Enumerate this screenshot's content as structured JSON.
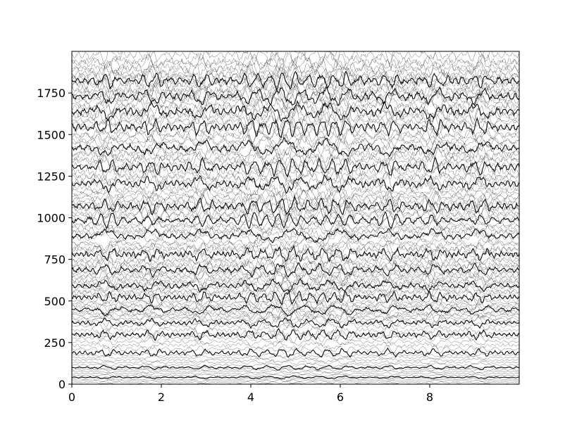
{
  "chart_data": {
    "type": "line",
    "title": "",
    "xlabel": "",
    "ylabel": "",
    "xlim": [
      0,
      10
    ],
    "ylim": [
      0,
      2000
    ],
    "x_ticks": [
      {
        "value": 0,
        "label": "0"
      },
      {
        "value": 2,
        "label": "2"
      },
      {
        "value": 4,
        "label": "4"
      },
      {
        "value": 6,
        "label": "6"
      },
      {
        "value": 8,
        "label": "8"
      }
    ],
    "y_ticks": [
      {
        "value": 0,
        "label": "0"
      },
      {
        "value": 250,
        "label": "250"
      },
      {
        "value": 500,
        "label": "500"
      },
      {
        "value": 750,
        "label": "750"
      },
      {
        "value": 1000,
        "label": "1000"
      },
      {
        "value": 1250,
        "label": "1250"
      },
      {
        "value": 1500,
        "label": "1500"
      },
      {
        "value": 1750,
        "label": "1750"
      }
    ],
    "grid": false,
    "legend": "none",
    "line_color": "#000000",
    "transition_times": [
      0.8,
      1.8,
      2.9,
      4.0,
      4.6,
      5.0,
      5.6,
      6.1,
      7.1,
      8.1,
      9.1
    ],
    "series": [
      {
        "offset": 20,
        "amplitude": 4
      },
      {
        "offset": 75,
        "amplitude": 6
      },
      {
        "offset": 145,
        "amplitude": 10
      },
      {
        "offset": 255,
        "amplitude": 18
      },
      {
        "offset": 375,
        "amplitude": 22
      },
      {
        "offset": 440,
        "amplitude": 20
      },
      {
        "offset": 530,
        "amplitude": 24
      },
      {
        "offset": 610,
        "amplitude": 26
      },
      {
        "offset": 680,
        "amplitude": 26
      },
      {
        "offset": 780,
        "amplitude": 28
      },
      {
        "offset": 880,
        "amplitude": 30
      },
      {
        "offset": 990,
        "amplitude": 30
      },
      {
        "offset": 1090,
        "amplitude": 32
      },
      {
        "offset": 1180,
        "amplitude": 34
      },
      {
        "offset": 1315,
        "amplitude": 34
      },
      {
        "offset": 1420,
        "amplitude": 36
      },
      {
        "offset": 1535,
        "amplitude": 36
      },
      {
        "offset": 1665,
        "amplitude": 38
      },
      {
        "offset": 1760,
        "amplitude": 38
      },
      {
        "offset": 1850,
        "amplitude": 38
      },
      {
        "offset": 1940,
        "amplitude": 36
      }
    ]
  }
}
